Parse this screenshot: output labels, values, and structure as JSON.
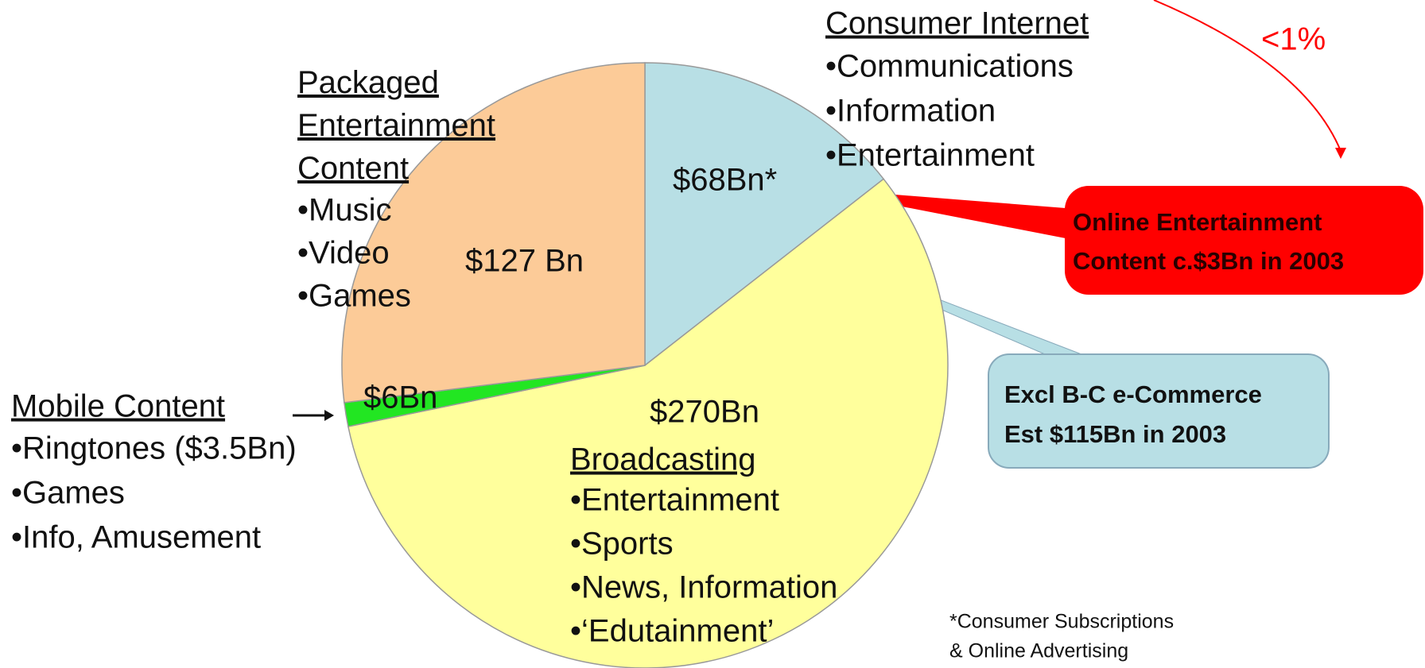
{
  "chart_data": {
    "type": "pie",
    "categories": [
      "Consumer Internet",
      "Broadcasting",
      "Mobile Content",
      "Packaged Entertainment Content"
    ],
    "values": [
      68,
      270,
      6,
      127
    ],
    "value_labels": [
      "$68Bn*",
      "$270Bn",
      "$6Bn",
      "$127 Bn"
    ],
    "colors": [
      "#b8dfe5",
      "#ffff9c",
      "#22e622",
      "#fccb98"
    ],
    "bullets": [
      [
        "•Communications",
        "•Information",
        "•Entertainment"
      ],
      [
        "•Entertainment",
        "•Sports",
        "•News, Information",
        "•‘Edutainment’"
      ],
      [
        "•Ringtones ($3.5Bn)",
        "•Games",
        "•Info, Amusement"
      ],
      [
        "•Music",
        "•Video",
        "•Games"
      ]
    ],
    "annotations": {
      "share": "<1%",
      "online_callout": [
        "Online Entertainment",
        "Content c.$3Bn in 2003"
      ],
      "ecommerce_callout": [
        "Excl B-C e-Commerce",
        "Est $115Bn in 2003"
      ],
      "footnote": [
        "*Consumer Subscriptions",
        "& Online Advertising"
      ]
    }
  }
}
